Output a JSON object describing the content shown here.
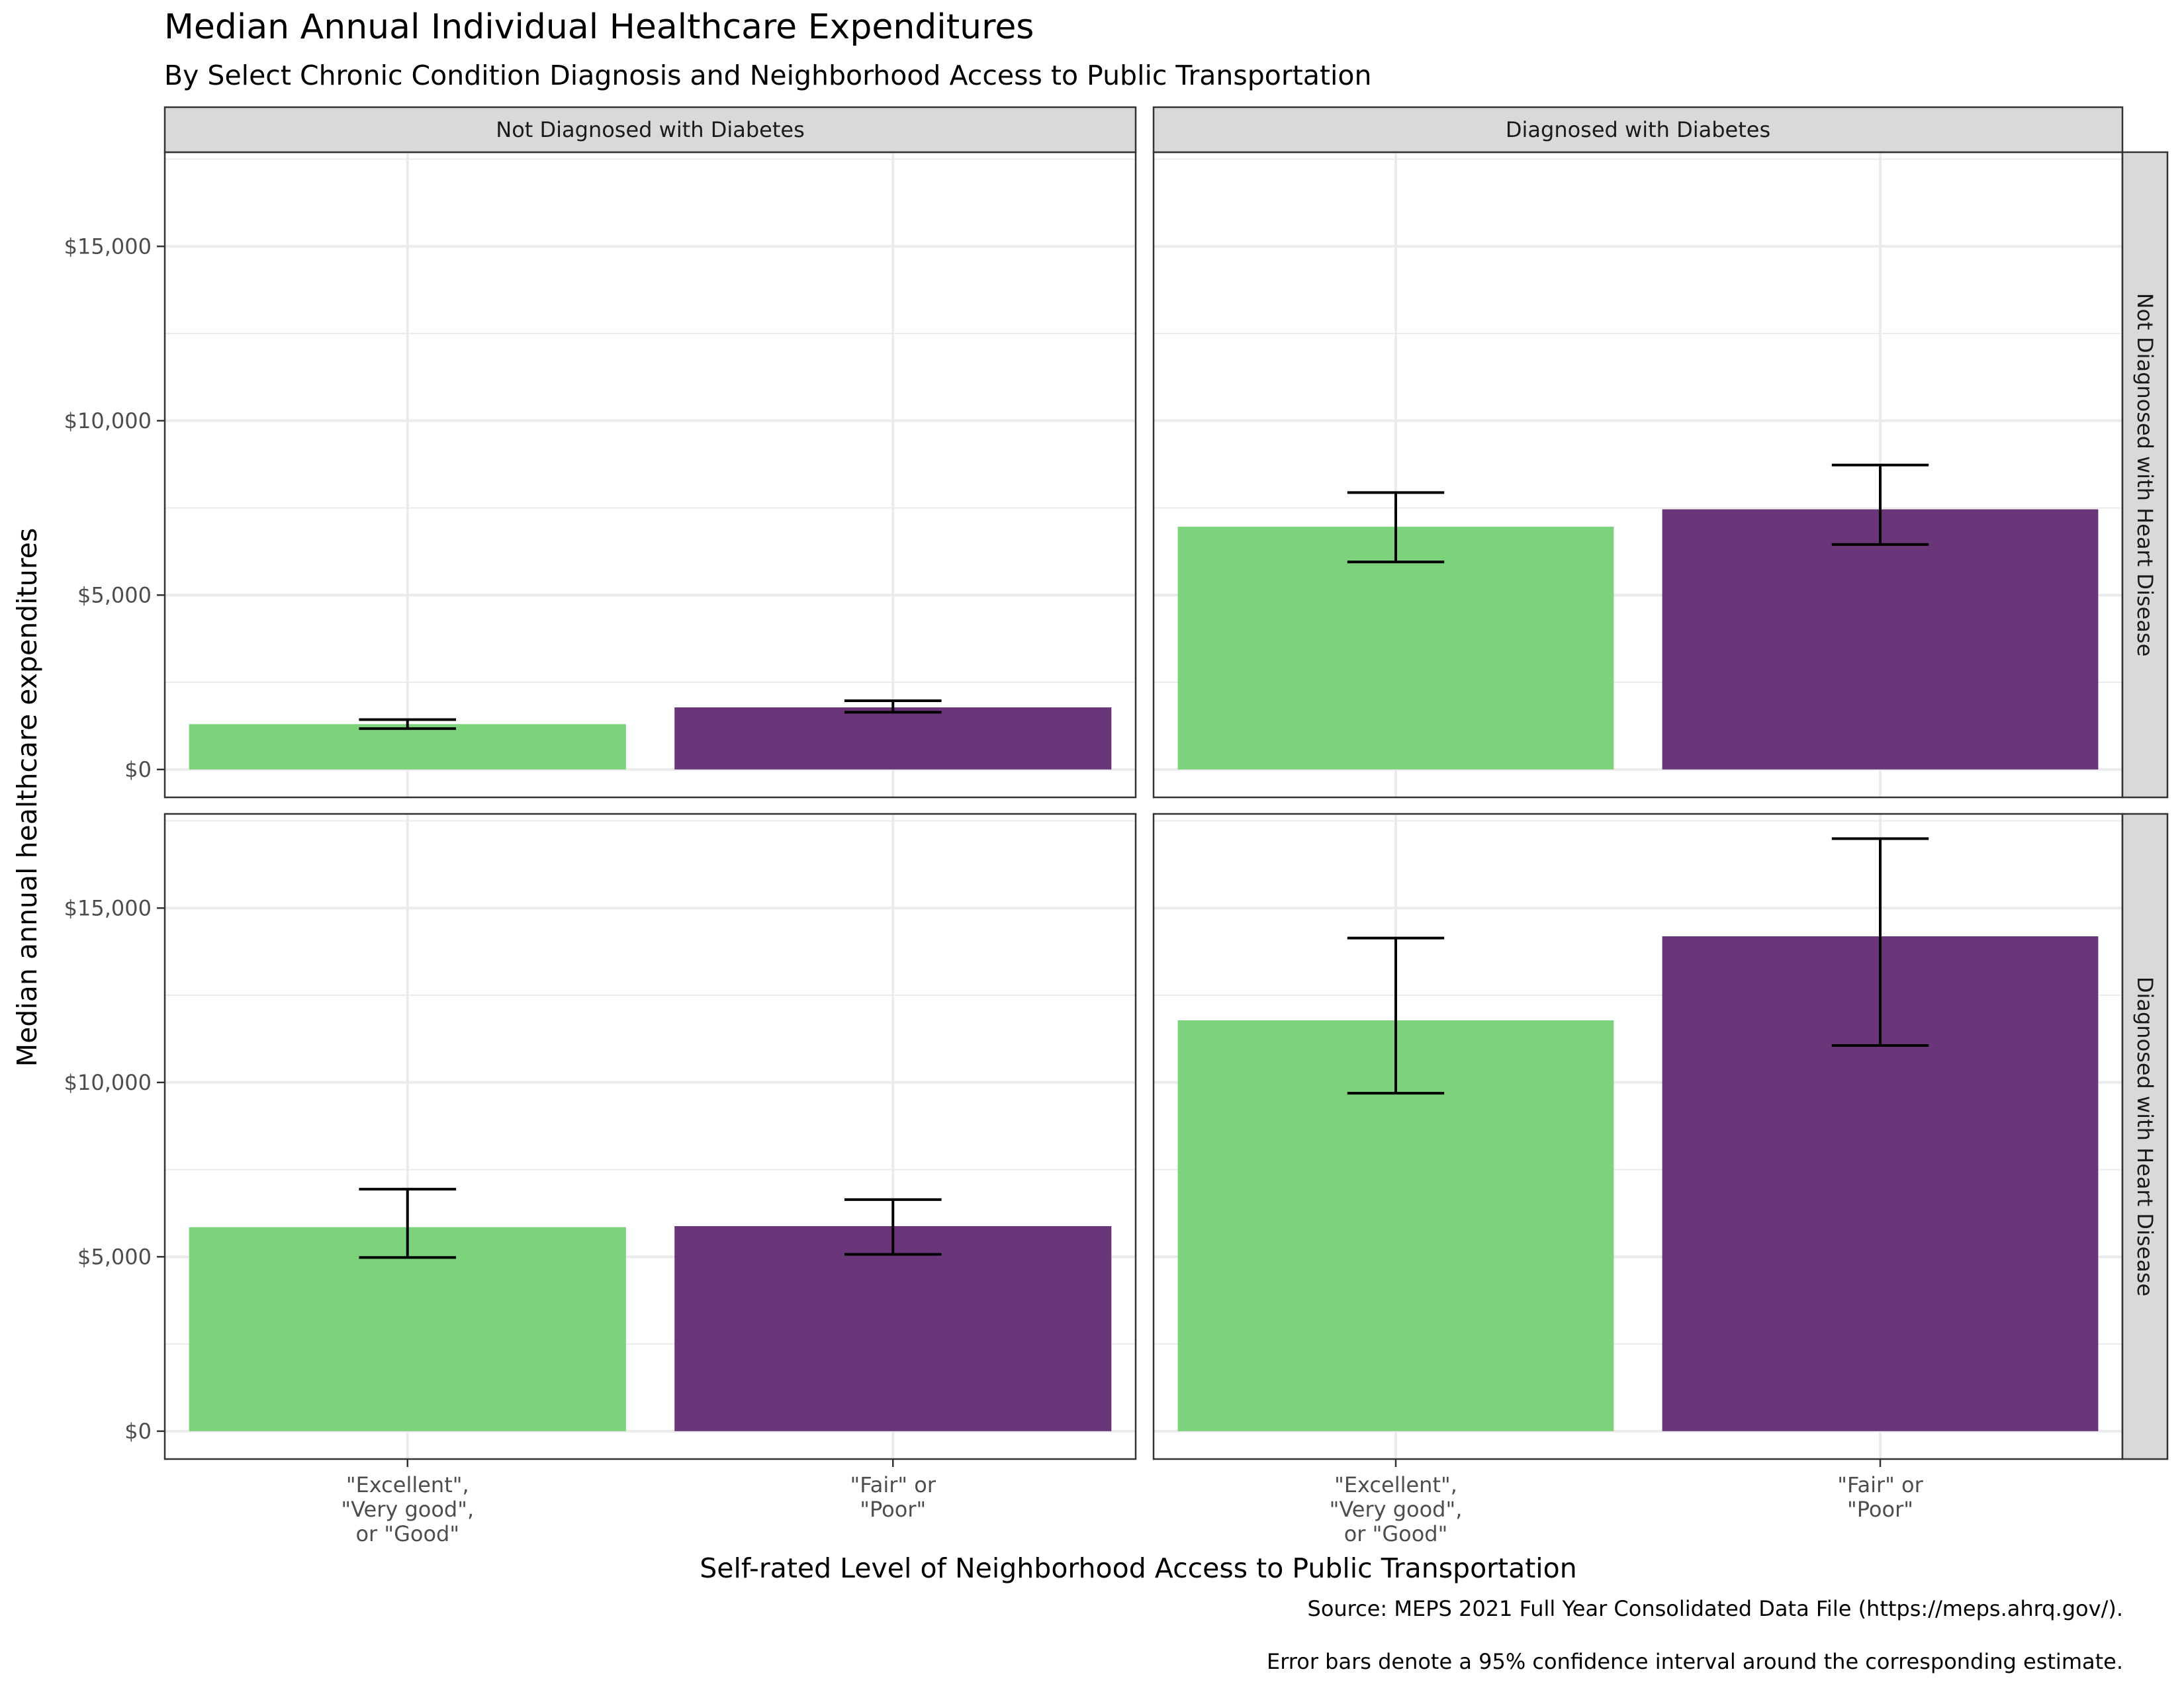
{
  "colors": {
    "bar_good": "#7dd37c",
    "bar_poor": "#6a3579",
    "strip_fill": "#d9d9d9",
    "grid": "#ebebeb",
    "panel_border": "#333333",
    "axis_text": "#4d4d4d"
  },
  "chart_data": {
    "type": "bar",
    "title": "Median Annual Individual Healthcare Expenditures",
    "subtitle": "By Select Chronic Condition Diagnosis and Neighborhood Access to Public Transportation",
    "xlabel": "Self-rated Level of Neighborhood Access to Public Transportation",
    "ylabel": "Median annual healthcare expenditures",
    "caption_lines": [
      "Source: MEPS 2021 Full Year Consolidated Data File (https://meps.ahrq.gov/).",
      "Error bars denote a 95% confidence interval around the corresponding estimate."
    ],
    "column_facets": [
      "Not Diagnosed with Diabetes",
      "Diagnosed with Diabetes"
    ],
    "row_facets": [
      "Not Diagnosed with Heart Disease",
      "Diagnosed with Heart Disease"
    ],
    "categories": [
      [
        "\"Excellent\",",
        "\"Very good\",",
        "or \"Good\""
      ],
      [
        "\"Fair\" or",
        "\"Poor\""
      ]
    ],
    "ylim": [
      -800,
      17700
    ],
    "y_ticks": [
      0,
      5000,
      10000,
      15000
    ],
    "y_tick_labels": [
      "$0",
      "$5,000",
      "$10,000",
      "$15,000"
    ],
    "grid": true,
    "legend": "none",
    "panels": [
      {
        "row": "Not Diagnosed with Heart Disease",
        "col": "Not Diagnosed with Diabetes",
        "values": [
          1300,
          1780
        ],
        "ci_low": [
          1170,
          1640
        ],
        "ci_high": [
          1430,
          1970
        ]
      },
      {
        "row": "Not Diagnosed with Heart Disease",
        "col": "Diagnosed with Diabetes",
        "values": [
          6960,
          7460
        ],
        "ci_low": [
          5950,
          6450
        ],
        "ci_high": [
          7940,
          8730
        ]
      },
      {
        "row": "Diagnosed with Heart Disease",
        "col": "Not Diagnosed with Diabetes",
        "values": [
          5850,
          5880
        ],
        "ci_low": [
          4980,
          5070
        ],
        "ci_high": [
          6940,
          6640
        ]
      },
      {
        "row": "Diagnosed with Heart Disease",
        "col": "Diagnosed with Diabetes",
        "values": [
          11780,
          14190
        ],
        "ci_low": [
          9690,
          11060
        ],
        "ci_high": [
          14140,
          16990
        ]
      }
    ]
  }
}
